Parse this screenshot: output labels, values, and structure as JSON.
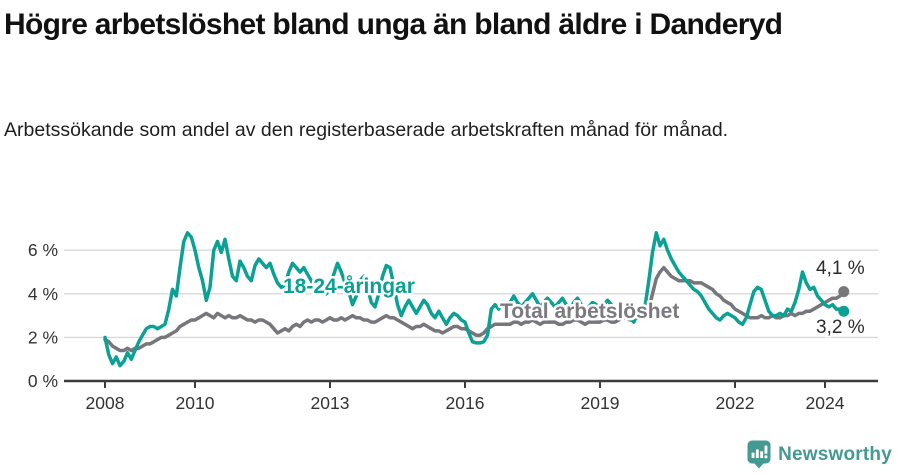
{
  "header": {
    "title": "Högre arbetslöshet bland unga än bland äldre i Danderyd",
    "subtitle": "Arbetssökande som andel av den registerbaserade arbetskraften månad för månad."
  },
  "footer": {
    "brand": "Newsworthy",
    "logo_icon": "newsworthy-speech-bubble-bar-chart-icon",
    "brand_color": "#449a92"
  },
  "colors": {
    "accent_teal": "#0ba194",
    "line_gray": "#76767b",
    "label_gray": "#7a7a7f",
    "grid": "#d9d9d9",
    "axis": "#3c3c3c",
    "tick_text": "#333333",
    "annotation_text": "#2b2b2b",
    "background": "#ffffff"
  },
  "chart_data": {
    "type": "line",
    "title": "Högre arbetslöshet bland unga än bland äldre i Danderyd",
    "subtitle": "Arbetssökande som andel av den registerbaserade arbetskraften månad för månad.",
    "x_unit": "month",
    "x_start": "2008-01",
    "x_end": "2024-06",
    "x_tick_years": [
      2008,
      2010,
      2013,
      2016,
      2019,
      2022,
      2024
    ],
    "x_tick_labels": [
      "2008",
      "2010",
      "2013",
      "2016",
      "2019",
      "2022",
      "2024"
    ],
    "y_ticks": [
      0,
      2,
      4,
      6
    ],
    "y_tick_labels": [
      "0 %",
      "2 %",
      "4 %",
      "6 %"
    ],
    "ylim": [
      0,
      7.2
    ],
    "grid": true,
    "legend_position": "inline-labels",
    "series": [
      {
        "name": "Total arbetslöshet",
        "color": "#76767b",
        "label_color": "#7a7a7f",
        "end_label": "4,1 %",
        "end_value": 4.1,
        "values": [
          1.9,
          1.8,
          1.6,
          1.5,
          1.4,
          1.4,
          1.5,
          1.4,
          1.5,
          1.5,
          1.6,
          1.7,
          1.7,
          1.8,
          1.9,
          2.0,
          2.0,
          2.1,
          2.2,
          2.3,
          2.5,
          2.6,
          2.7,
          2.8,
          2.8,
          2.9,
          3.0,
          3.1,
          3.0,
          2.9,
          3.1,
          3.0,
          2.9,
          3.0,
          2.9,
          2.9,
          3.0,
          2.9,
          2.8,
          2.8,
          2.7,
          2.8,
          2.8,
          2.7,
          2.6,
          2.4,
          2.2,
          2.3,
          2.4,
          2.3,
          2.5,
          2.6,
          2.5,
          2.7,
          2.8,
          2.7,
          2.8,
          2.8,
          2.7,
          2.8,
          2.9,
          2.8,
          2.8,
          2.9,
          2.8,
          2.9,
          3.0,
          2.9,
          2.9,
          2.8,
          2.8,
          2.7,
          2.7,
          2.8,
          2.9,
          3.0,
          2.9,
          2.9,
          2.8,
          2.7,
          2.6,
          2.5,
          2.4,
          2.5,
          2.5,
          2.6,
          2.5,
          2.4,
          2.3,
          2.3,
          2.2,
          2.3,
          2.4,
          2.5,
          2.5,
          2.4,
          2.4,
          2.3,
          2.2,
          2.1,
          2.1,
          2.2,
          2.4,
          2.5,
          2.6,
          2.6,
          2.6,
          2.6,
          2.6,
          2.7,
          2.7,
          2.6,
          2.7,
          2.7,
          2.8,
          2.7,
          2.6,
          2.7,
          2.7,
          2.7,
          2.7,
          2.6,
          2.6,
          2.7,
          2.7,
          2.8,
          2.8,
          2.7,
          2.6,
          2.7,
          2.7,
          2.7,
          2.7,
          2.8,
          2.8,
          2.7,
          2.7,
          2.8,
          2.9,
          2.9,
          2.8,
          2.8,
          2.9,
          3.0,
          3.1,
          3.3,
          4.0,
          4.7,
          5.0,
          5.2,
          5.0,
          4.8,
          4.7,
          4.6,
          4.6,
          4.6,
          4.6,
          4.5,
          4.5,
          4.5,
          4.4,
          4.3,
          4.2,
          4.0,
          3.9,
          3.7,
          3.6,
          3.5,
          3.3,
          3.2,
          3.1,
          3.0,
          2.9,
          2.9,
          2.9,
          3.0,
          2.9,
          2.9,
          3.0,
          2.9,
          2.9,
          3.0,
          3.0,
          3.1,
          3.0,
          3.1,
          3.1,
          3.2,
          3.2,
          3.3,
          3.4,
          3.5,
          3.6,
          3.7,
          3.8,
          3.8,
          3.9,
          4.1
        ]
      },
      {
        "name": "18-24-åringar",
        "color": "#0ba194",
        "label_color": "#0ba194",
        "end_label": "3,2 %",
        "end_value": 3.2,
        "values": [
          2.0,
          1.2,
          0.8,
          1.1,
          0.7,
          0.9,
          1.3,
          1.0,
          1.4,
          1.8,
          2.1,
          2.4,
          2.5,
          2.5,
          2.4,
          2.5,
          2.6,
          3.3,
          4.2,
          3.9,
          5.2,
          6.4,
          6.8,
          6.6,
          6.0,
          5.2,
          4.6,
          3.7,
          4.3,
          6.0,
          6.4,
          5.9,
          6.5,
          5.6,
          4.8,
          4.6,
          5.5,
          5.2,
          4.8,
          4.6,
          5.3,
          5.6,
          5.4,
          5.2,
          5.4,
          4.9,
          4.5,
          4.3,
          4.4,
          5.0,
          5.4,
          5.2,
          5.0,
          5.2,
          4.9,
          4.6,
          4.2,
          4.5,
          4.1,
          4.0,
          4.3,
          4.9,
          5.4,
          5.0,
          4.5,
          4.1,
          3.5,
          3.9,
          4.6,
          4.8,
          4.3,
          3.6,
          3.4,
          4.0,
          4.8,
          5.3,
          5.2,
          4.4,
          3.5,
          3.0,
          3.4,
          3.7,
          3.4,
          3.1,
          3.4,
          3.7,
          3.5,
          3.1,
          2.9,
          3.2,
          2.9,
          2.6,
          2.9,
          3.1,
          3.0,
          2.8,
          2.7,
          2.2,
          1.8,
          1.75,
          1.75,
          1.8,
          2.1,
          3.3,
          3.5,
          3.3,
          3.6,
          3.4,
          3.6,
          3.9,
          3.6,
          3.4,
          3.6,
          3.8,
          4.0,
          3.7,
          3.4,
          3.6,
          3.8,
          3.6,
          3.4,
          3.6,
          3.8,
          3.5,
          3.3,
          3.6,
          3.8,
          3.5,
          3.3,
          3.4,
          3.6,
          3.5,
          3.3,
          3.5,
          3.7,
          3.5,
          3.3,
          3.5,
          3.6,
          3.2,
          2.9,
          2.7,
          3.1,
          3.3,
          3.4,
          4.6,
          5.9,
          6.8,
          6.2,
          6.5,
          6.0,
          5.6,
          5.3,
          5.0,
          4.8,
          4.6,
          4.4,
          4.2,
          4.1,
          3.9,
          3.6,
          3.3,
          3.1,
          2.9,
          2.8,
          3.0,
          3.1,
          3.0,
          2.9,
          2.7,
          2.6,
          2.9,
          3.5,
          4.1,
          4.3,
          4.2,
          3.7,
          3.2,
          3.0,
          3.0,
          3.1,
          3.0,
          3.3,
          3.2,
          3.6,
          4.2,
          5.0,
          4.5,
          4.2,
          4.3,
          3.9,
          3.7,
          3.5,
          3.4,
          3.5,
          3.3,
          3.3,
          3.2
        ]
      }
    ]
  }
}
